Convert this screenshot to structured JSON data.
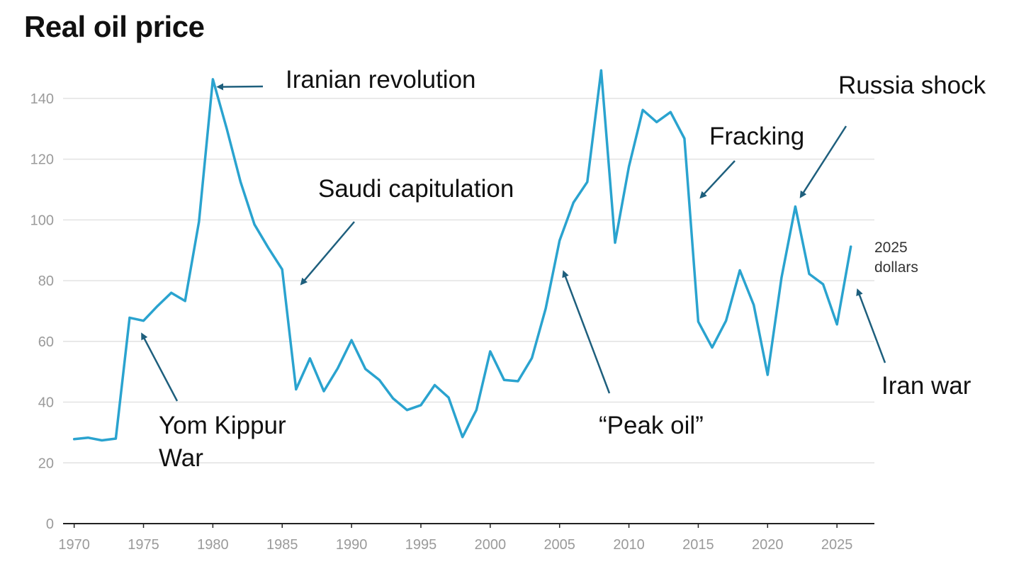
{
  "title": "Real oil price",
  "chart_data": {
    "type": "line",
    "title": "Real oil price",
    "xlabel": "",
    "ylabel": "",
    "unit_label": [
      "2025",
      "dollars"
    ],
    "xlim": [
      1969.2,
      2027.7
    ],
    "ylim": [
      0,
      150
    ],
    "yticks": [
      0,
      20,
      40,
      60,
      80,
      100,
      120,
      140
    ],
    "xticks": [
      1970,
      1975,
      1980,
      1985,
      1990,
      1995,
      2000,
      2005,
      2010,
      2015,
      2020,
      2025
    ],
    "grid": true,
    "series": [
      {
        "name": "Real oil price",
        "color": "#2aa3cf",
        "x": [
          1970,
          1971,
          1972,
          1973,
          1974,
          1975,
          1976,
          1977,
          1978,
          1979,
          1980,
          1981,
          1982,
          1983,
          1984,
          1985,
          1986,
          1987,
          1988,
          1989,
          1990,
          1991,
          1992,
          1993,
          1994,
          1995,
          1996,
          1997,
          1998,
          1999,
          2000,
          2001,
          2002,
          2003,
          2004,
          2005,
          2006,
          2007,
          2008,
          2009,
          2010,
          2011,
          2012,
          2013,
          2014,
          2015,
          2016,
          2017,
          2018,
          2019,
          2020,
          2021,
          2022,
          2023,
          2024,
          2025,
          2026
        ],
        "values": [
          27.8,
          28.3,
          27.4,
          28,
          67.8,
          66.8,
          71.6,
          76,
          73.3,
          99.4,
          146.3,
          130,
          112.5,
          98.5,
          90.8,
          83.7,
          44.2,
          54.4,
          43.6,
          51.1,
          60.4,
          50.9,
          47.3,
          41.2,
          37.4,
          39,
          45.6,
          41.5,
          28.5,
          37.4,
          56.7,
          47.3,
          46.9,
          54.5,
          70.8,
          93.2,
          105.7,
          112.5,
          149.2,
          92.5,
          117.6,
          136.2,
          132.2,
          135.5,
          126.8,
          66.5,
          58,
          66.8,
          83.4,
          72,
          49,
          81,
          104.4,
          82.2,
          78.8,
          65.6,
          91.2
        ]
      }
    ],
    "annotations": [
      {
        "text": "Iranian revolution",
        "arrow_to": [
          1980.4,
          143.8
        ]
      },
      {
        "text": "Saudi capitulation",
        "arrow_to": [
          1986.4,
          79
        ]
      },
      {
        "text": "Fracking",
        "arrow_to": [
          2015.2,
          107.5
        ]
      },
      {
        "text": "Russia shock",
        "arrow_to": [
          2022.4,
          107.7
        ]
      },
      {
        "text": "Yom Kippur",
        "text2": "War",
        "arrow_to": [
          1974.9,
          62.3
        ]
      },
      {
        "text": "“Peak oil”",
        "arrow_to": [
          2005.3,
          82.8
        ]
      },
      {
        "text": "Iran war",
        "arrow_to": [
          2026.5,
          76.8
        ]
      }
    ],
    "colors": {
      "line": "#2aa3cf",
      "arrow": "#1e5f7d",
      "grid": "#e2e2e2",
      "axis": "#222222"
    }
  }
}
